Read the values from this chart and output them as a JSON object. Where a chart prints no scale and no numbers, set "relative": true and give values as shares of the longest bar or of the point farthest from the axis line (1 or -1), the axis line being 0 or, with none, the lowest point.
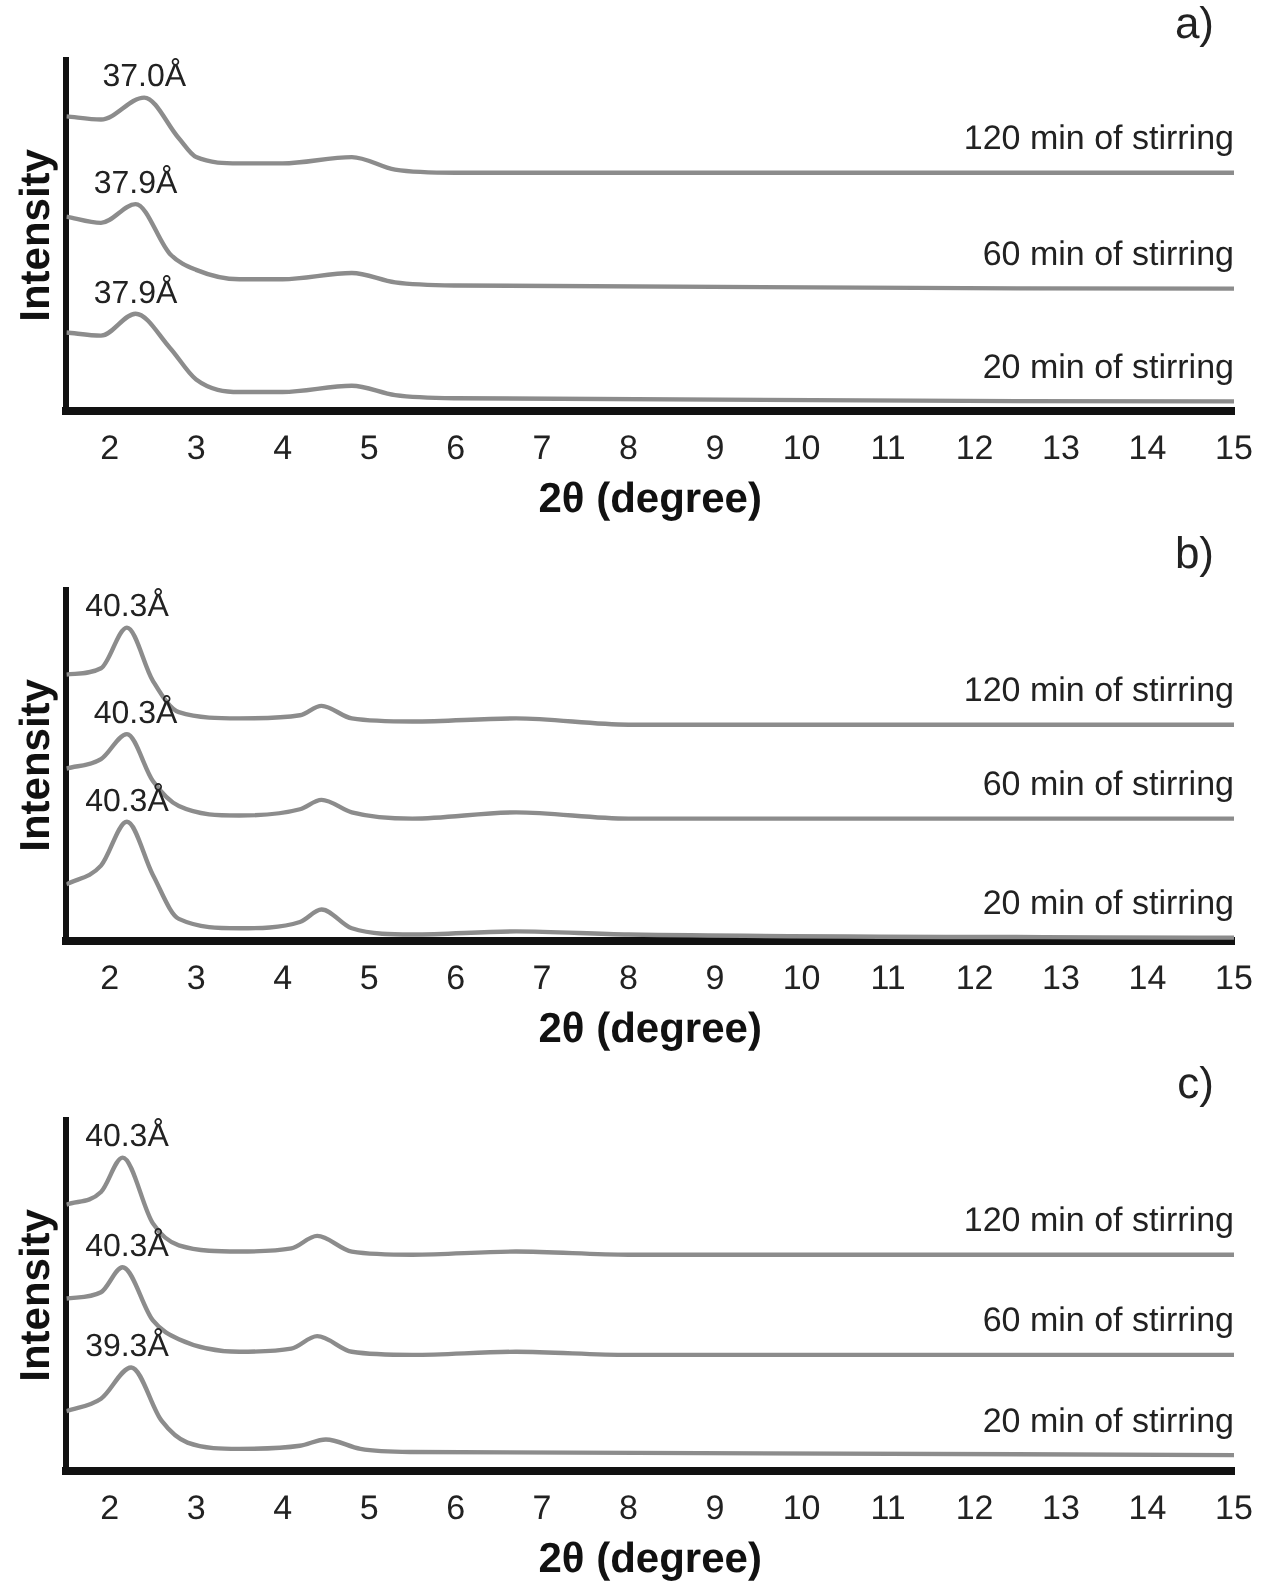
{
  "chart_data": [
    {
      "type": "line",
      "relative": true,
      "xlabel": "2θ (degree)",
      "ylabel": "Intensity",
      "xlim": [
        1.5,
        15
      ],
      "xticks": [
        2,
        3,
        4,
        5,
        6,
        7,
        8,
        9,
        10,
        11,
        12,
        13,
        14,
        15
      ],
      "grid": false,
      "legend": false,
      "marker": "none",
      "line_style": "solid",
      "tick_labels": "x",
      "annotations": [
        "a)",
        {
          "text": "37.0Å",
          "x": 2.4,
          "y": 1
        },
        {
          "text": "37.9Å",
          "x": 2.3,
          "y": 0.66
        },
        {
          "text": "37.9Å",
          "x": 2.3,
          "y": 0.31
        }
      ],
      "series": [
        {
          "name": "120 min of stirring",
          "color": "#8c8c8c",
          "x": [
            1.5,
            1.9,
            2.4,
            2.8,
            3.0,
            3.5,
            4.0,
            4.8,
            5.3,
            6,
            10,
            15
          ],
          "values": [
            0.94,
            0.93,
            1,
            0.87,
            0.81,
            0.79,
            0.79,
            0.81,
            0.77,
            0.76,
            0.76,
            0.76
          ]
        },
        {
          "name": "60 min of stirring",
          "color": "#8c8c8c",
          "x": [
            1.5,
            1.9,
            2.3,
            2.7,
            3.0,
            3.5,
            4.0,
            4.8,
            5.3,
            6,
            15
          ],
          "values": [
            0.62,
            0.6,
            0.66,
            0.5,
            0.45,
            0.42,
            0.42,
            0.44,
            0.41,
            0.4,
            0.39
          ]
        },
        {
          "name": "20 min of stirring",
          "color": "#8c8c8c",
          "x": [
            1.5,
            1.9,
            2.3,
            2.7,
            3.0,
            3.5,
            4.0,
            4.8,
            5.3,
            6,
            15
          ],
          "values": [
            0.25,
            0.24,
            0.31,
            0.2,
            0.1,
            0.06,
            0.06,
            0.08,
            0.05,
            0.04,
            0.03
          ]
        }
      ]
    },
    {
      "type": "line",
      "relative": true,
      "xlabel": "2θ (degree)",
      "ylabel": "Intensity",
      "xlim": [
        1.5,
        15
      ],
      "xticks": [
        2,
        3,
        4,
        5,
        6,
        7,
        8,
        9,
        10,
        11,
        12,
        13,
        14,
        15
      ],
      "grid": false,
      "legend": false,
      "marker": "none",
      "line_style": "solid",
      "tick_labels": "x",
      "annotations": [
        "b)",
        {
          "text": "40.3Å",
          "x": 2.2,
          "y": 1
        },
        {
          "text": "40.3Å",
          "x": 2.3,
          "y": 0.66
        },
        {
          "text": "40.3Å",
          "x": 2.2,
          "y": 0.38
        }
      ],
      "series": [
        {
          "name": "120 min of stirring",
          "color": "#8c8c8c",
          "x": [
            1.5,
            1.9,
            2.2,
            2.5,
            2.8,
            3.5,
            4.2,
            4.45,
            4.8,
            5.5,
            6.7,
            8,
            15
          ],
          "values": [
            0.85,
            0.87,
            1,
            0.83,
            0.73,
            0.71,
            0.72,
            0.75,
            0.71,
            0.7,
            0.71,
            0.69,
            0.69
          ]
        },
        {
          "name": "60 min of stirring",
          "color": "#8c8c8c",
          "x": [
            1.5,
            1.9,
            2.2,
            2.5,
            2.8,
            3.5,
            4.2,
            4.45,
            4.8,
            5.5,
            6.7,
            8,
            15
          ],
          "values": [
            0.55,
            0.58,
            0.66,
            0.51,
            0.43,
            0.4,
            0.42,
            0.45,
            0.41,
            0.39,
            0.41,
            0.39,
            0.39
          ]
        },
        {
          "name": "20 min of stirring",
          "color": "#8c8c8c",
          "x": [
            1.5,
            1.9,
            2.2,
            2.5,
            2.8,
            3.5,
            4.2,
            4.45,
            4.8,
            5.5,
            6.7,
            8,
            15
          ],
          "values": [
            0.18,
            0.24,
            0.38,
            0.21,
            0.07,
            0.04,
            0.06,
            0.1,
            0.04,
            0.02,
            0.03,
            0.02,
            0.01
          ]
        }
      ]
    },
    {
      "type": "line",
      "relative": true,
      "xlabel": "2θ (degree)",
      "ylabel": "Intensity",
      "xlim": [
        1.5,
        15
      ],
      "xticks": [
        2,
        3,
        4,
        5,
        6,
        7,
        8,
        9,
        10,
        11,
        12,
        13,
        14,
        15
      ],
      "grid": false,
      "legend": false,
      "marker": "none",
      "line_style": "solid",
      "tick_labels": "x",
      "annotations": [
        "c)",
        {
          "text": "40.3Å",
          "x": 2.2,
          "y": 1
        },
        {
          "text": "40.3Å",
          "x": 2.2,
          "y": 0.65
        },
        {
          "text": "39.3Å",
          "x": 2.2,
          "y": 0.33
        }
      ],
      "series": [
        {
          "name": "120 min of stirring",
          "color": "#8c8c8c",
          "x": [
            1.5,
            1.9,
            2.15,
            2.5,
            2.8,
            3.5,
            4.1,
            4.4,
            4.8,
            5.5,
            6.7,
            8,
            15
          ],
          "values": [
            0.85,
            0.89,
            1,
            0.79,
            0.72,
            0.7,
            0.71,
            0.75,
            0.7,
            0.69,
            0.7,
            0.69,
            0.69
          ]
        },
        {
          "name": "60 min of stirring",
          "color": "#8c8c8c",
          "x": [
            1.5,
            1.9,
            2.15,
            2.5,
            2.8,
            3.5,
            4.1,
            4.4,
            4.8,
            5.5,
            6.7,
            8,
            15
          ],
          "values": [
            0.55,
            0.57,
            0.65,
            0.48,
            0.42,
            0.38,
            0.39,
            0.43,
            0.38,
            0.37,
            0.38,
            0.37,
            0.37
          ]
        },
        {
          "name": "20 min of stirring",
          "color": "#8c8c8c",
          "x": [
            1.5,
            1.9,
            2.25,
            2.6,
            2.9,
            3.5,
            4.2,
            4.5,
            4.9,
            5.5,
            15
          ],
          "values": [
            0.19,
            0.23,
            0.33,
            0.16,
            0.09,
            0.07,
            0.08,
            0.1,
            0.07,
            0.06,
            0.05
          ]
        }
      ]
    }
  ]
}
